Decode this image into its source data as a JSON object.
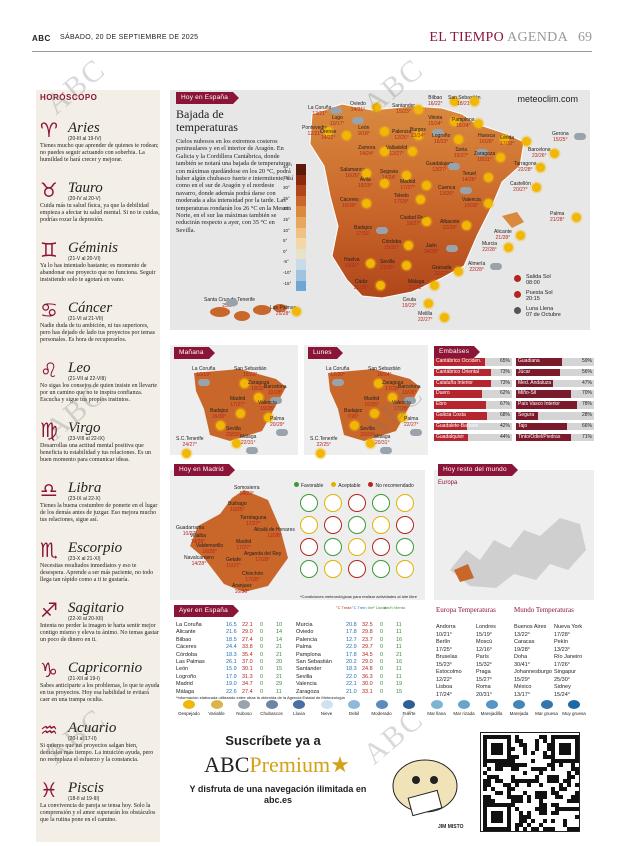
{
  "header": {
    "logo": "ABC",
    "date": "SÁBADO, 20 DE SEPTIEMBRE DE 2025",
    "section": "EL TIEMPO",
    "subsection": "AGENDA",
    "page": "69"
  },
  "watermark": "ABC",
  "horoscope": {
    "title": "HORÓSCOPO",
    "signs": [
      {
        "name": "Aries",
        "symbol": "♈",
        "dates": "(20-III al 19-IV)",
        "text": "Tienes mucho que aprender de quienes te rodean; no puedes seguir actuando con soberbia. La humildad te hará crecer y mejorar."
      },
      {
        "name": "Tauro",
        "symbol": "♉",
        "dates": "(20-IV al 20-V)",
        "text": "Cuida más tu salud física, ya que la debilidad empieza a afectar tu salud mental. Si no te cuidas, podrías rozar la depresión."
      },
      {
        "name": "Géminis",
        "symbol": "♊",
        "dates": "(21-V al 20-VI)",
        "text": "Ya lo has intentado bastante; es momento de abandonar ese proyecto que no funciona. Seguir insistiendo solo te agotará en vano."
      },
      {
        "name": "Cáncer",
        "symbol": "♋",
        "dates": "(21-VI al 21-VII)",
        "text": "Nadie duda de tu ambición, ni tus superiores, pero has dejado de lado tus proyectos por temas personales. Es hora de recuperarlos."
      },
      {
        "name": "Leo",
        "symbol": "♌",
        "dates": "(21-VII al 22-VIII)",
        "text": "No sigas los consejos de quien insiste en llevarte por un camino que no te inspira confianza. Escucha y sigue tus propios instintos."
      },
      {
        "name": "Virgo",
        "symbol": "♍",
        "dates": "(23-VIII al 22-IX)",
        "text": "Desarrollas una actitud mental positiva que beneficia tu estabilidad y tus relaciones. Es un buen momento para comunicar ideas."
      },
      {
        "name": "Libra",
        "symbol": "♎",
        "dates": "(23-IX al 22-X)",
        "text": "Tienes la buena costumbre de ponerte en el lugar de los demás antes de juzgar. Eso mejora mucho tus relaciones, sigue así."
      },
      {
        "name": "Escorpio",
        "symbol": "♏",
        "dates": "(23-X al 21-XI)",
        "text": "Necesitas resultados inmediatos y eso te desespera. Aprende a ser más paciente, no todo llega tan rápido como a ti te gustaría."
      },
      {
        "name": "Sagitario",
        "symbol": "♐",
        "dates": "(22-XI al 20-XII)",
        "text": "Intenta no perder la imagen te harta sentir mejor contigo mismo y eleva tu ánimo. No temas gastar un poco de dinero en ti."
      },
      {
        "name": "Capricornio",
        "symbol": "♑",
        "dates": "(21-XII al 19-I)",
        "text": "Sabes anticiparte a los problemas, lo que te ayuda en tus proyectos. Hoy esa habilidad te evitará caer en una trampa oculta."
      },
      {
        "name": "Acuario",
        "symbol": "♒",
        "dates": "(20-I al 17-II)",
        "text": "Si quieres que tus proyectos salgan bien, dedícales más tiempo. La intuición ayuda, pero no reemplaza el esfuerzo y la constancia."
      },
      {
        "name": "Piscis",
        "symbol": "♓",
        "dates": "(18-II al 19-III)",
        "text": "La convivencia de pareja se tensa hoy. Solo la comprensión y el amor superarán los obstáculos que la rutina pone en el camino."
      }
    ]
  },
  "spain_map": {
    "tag": "Hoy en España",
    "brand": "meteoclim.com",
    "headline": "Bajada de temperaturas",
    "body": "Cielos nubosos en los extremos costeros peninsulares y en el interior de Aragón. En Galicia y la Cordillera Cantábrica, donde también se notará una bajada de temperaturas, con máximas quedándose en los 20 °C, podrá haber algún chubasco fuerte e intermitente, así como en el sur de Aragón y el nordeste navarro, donde además podrá darse con moderada a alta intensidad por la tarde. Las temperaturas rondarán los 26 °C en la Meseta Norte, en el sur las máximas también se reducirán respecto a ayer, con 35 °C en Sevilla.",
    "scale": [
      "40°",
      "35°",
      "30°",
      "25°",
      "20°",
      "15°",
      "10°",
      "5°",
      "0°",
      "-5°",
      "-10°",
      "-15°"
    ],
    "scale_colors": [
      "#5c1a0a",
      "#8a2a0e",
      "#b0461a",
      "#c9662a",
      "#d98a3f",
      "#e6a760",
      "#efc283",
      "#f3d7a6",
      "#e8e2c8",
      "#c8dbe8",
      "#9fc4e0",
      "#6ea6d4"
    ],
    "cities": [
      {
        "n": "La Coruña",
        "t": "13/21°"
      },
      {
        "n": "Oviedo",
        "t": "14/21°"
      },
      {
        "n": "Santander",
        "t": "15/23°"
      },
      {
        "n": "Bilbao",
        "t": "16/22°"
      },
      {
        "n": "San Sebastián",
        "t": "18/21°"
      },
      {
        "n": "Lugo",
        "t": "10/17°"
      },
      {
        "n": "Pontevedra",
        "t": "12/21°"
      },
      {
        "n": "Orense",
        "t": "14/22°"
      },
      {
        "n": "León",
        "t": "9/18°"
      },
      {
        "n": "Palencia",
        "t": "12/26°"
      },
      {
        "n": "Burgos",
        "t": "13/24°"
      },
      {
        "n": "Vitoria",
        "t": "15/24°"
      },
      {
        "n": "Pamplona",
        "t": "16/24°"
      },
      {
        "n": "Huesca",
        "t": "16/28°"
      },
      {
        "n": "Lérida",
        "t": "17/32°"
      },
      {
        "n": "Gerona",
        "t": "15/25°"
      },
      {
        "n": "Barcelona",
        "t": "23/26°"
      },
      {
        "n": "Zamora",
        "t": "14/24°"
      },
      {
        "n": "Valladolid",
        "t": "12/27°"
      },
      {
        "n": "Logroño",
        "t": "16/23°"
      },
      {
        "n": "Soria",
        "t": "15/27°"
      },
      {
        "n": "Zaragoza",
        "t": "18/31°"
      },
      {
        "n": "Tarragona",
        "t": "22/28°"
      },
      {
        "n": "Salamanca",
        "t": "16/26°"
      },
      {
        "n": "Segovia",
        "t": "14/24°"
      },
      {
        "n": "Guadalajara",
        "t": "13/27°"
      },
      {
        "n": "Teruel",
        "t": "14/26°"
      },
      {
        "n": "Castellón",
        "t": "20/27°"
      },
      {
        "n": "Ávila",
        "t": "16/25°"
      },
      {
        "n": "Madrid",
        "t": "17/27°"
      },
      {
        "n": "Cuenca",
        "t": "13/26°"
      },
      {
        "n": "Palma",
        "t": "21/28°"
      },
      {
        "n": "Cáceres",
        "t": "16/30°"
      },
      {
        "n": "Toledo",
        "t": "17/29°"
      },
      {
        "n": "Valencia",
        "t": "19/28°"
      },
      {
        "n": "Badajoz",
        "t": "17/31°"
      },
      {
        "n": "Ciudad Real",
        "t": "18/27°"
      },
      {
        "n": "Albacete",
        "t": "12/29°"
      },
      {
        "n": "Alicante",
        "t": "21/28°"
      },
      {
        "n": "Córdoba",
        "t": "15/31°"
      },
      {
        "n": "Jaén",
        "t": "24/29°"
      },
      {
        "n": "Murcia",
        "t": "22/28°"
      },
      {
        "n": "Huelva",
        "t": "19/31°"
      },
      {
        "n": "Sevilla",
        "t": "21/35°"
      },
      {
        "n": "Granada",
        "t": "22/27°"
      },
      {
        "n": "Almería",
        "t": "22/28°"
      },
      {
        "n": "Málaga",
        "t": "21/28°"
      },
      {
        "n": "Cádiz",
        "t": "22/26°"
      },
      {
        "n": "Ceuta",
        "t": "19/23°"
      },
      {
        "n": "Melilla",
        "t": "22/27°"
      },
      {
        "n": "Santa Cruz de Tenerife",
        "t": "25/27°"
      },
      {
        "n": "Las Palmas",
        "t": "26/28°"
      }
    ],
    "sun": {
      "rise_label": "Salida Sol",
      "rise": "08:00",
      "set_label": "Puesta Sol",
      "set": "20:15",
      "moon_label": "Luna Llena",
      "moon": "07 de Octubre"
    }
  },
  "tomorrow": {
    "tag": "Mañana",
    "cities": [
      {
        "n": "La Coruña",
        "t": "10/19°"
      },
      {
        "n": "San Sebastián",
        "t": "19/23°"
      },
      {
        "n": "Zaragoza",
        "t": "18/32°"
      },
      {
        "n": "Barcelona",
        "t": "22/28°"
      },
      {
        "n": "Madrid",
        "t": "17/27°"
      },
      {
        "n": "Valencia",
        "t": "19/28°"
      },
      {
        "n": "Palma",
        "t": "20/29°"
      },
      {
        "n": "Badajoz",
        "t": "16/30°"
      },
      {
        "n": "Sevilla",
        "t": "23/33°"
      },
      {
        "n": "Málaga",
        "t": "22/31°"
      },
      {
        "n": "S.C.Tenerife",
        "t": "24/27°"
      }
    ]
  },
  "monday": {
    "tag": "Lunes",
    "cities": [
      {
        "n": "La Coruña",
        "t": "12/20°"
      },
      {
        "n": "San Sebastián",
        "t": "16/24°"
      },
      {
        "n": "Zaragoza",
        "t": "17/28°"
      },
      {
        "n": "Barcelona",
        "t": "19/26°"
      },
      {
        "n": "Madrid",
        "t": "16/25°"
      },
      {
        "n": "Valencia",
        "t": "17/28°"
      },
      {
        "n": "Palma",
        "t": "22/27°"
      },
      {
        "n": "Badajoz",
        "t": "7/26°"
      },
      {
        "n": "Sevilla",
        "t": "20/29°"
      },
      {
        "n": "Málaga",
        "t": "20/31°"
      },
      {
        "n": "S.C.Tenerife",
        "t": "22/25°"
      }
    ]
  },
  "reservoirs": {
    "tag": "Embalses",
    "left": [
      {
        "n": "Cantábrico Occiden.",
        "v": "65%"
      },
      {
        "n": "Cantábrico Oriental",
        "v": "73%"
      },
      {
        "n": "Cataluña Interior",
        "v": "73%"
      },
      {
        "n": "Duero",
        "v": "62%"
      },
      {
        "n": "Ebro",
        "v": "67%"
      },
      {
        "n": "Galicia Costa",
        "v": "68%"
      },
      {
        "n": "Guadalete-Barbate",
        "v": "42%"
      },
      {
        "n": "Guadalquivir",
        "v": "44%"
      }
    ],
    "right": [
      {
        "n": "Guadiana",
        "v": "59%"
      },
      {
        "n": "Júcar",
        "v": "56%"
      },
      {
        "n": "Med. Andaluza",
        "v": "47%"
      },
      {
        "n": "Miño-Sil",
        "v": "70%"
      },
      {
        "n": "País Vasco Interior",
        "v": "78%"
      },
      {
        "n": "Segura",
        "v": "28%"
      },
      {
        "n": "Tajo",
        "v": "66%"
      },
      {
        "n": "Tinto/Odiel/Piedras",
        "v": "71%"
      }
    ],
    "colors": {
      "left": "#b5252f",
      "right": "#7a1a2a",
      "band": "#d4d4d4"
    }
  },
  "madrid": {
    "tag": "Hoy en Madrid",
    "legend": [
      "Favorable",
      "Aceptable",
      "No recomendado"
    ],
    "legend_colors": [
      "#3a9a3a",
      "#e2b100",
      "#b3261e"
    ],
    "note": "*Condiciones meteorológicas para realizar actividades al aire libre",
    "towns": [
      {
        "n": "Somosierra",
        "t": "14/23°"
      },
      {
        "n": "Buitrago",
        "t": "10/25°"
      },
      {
        "n": "Torrelaguna",
        "t": "17/27°"
      },
      {
        "n": "Guadarrama",
        "t": "10/27°"
      },
      {
        "n": "Alcalá de Henares",
        "t": "12/28°"
      },
      {
        "n": "Villalba",
        "t": "14/26°"
      },
      {
        "n": "Madrid",
        "t": "17/27°"
      },
      {
        "n": "Navalcarnero",
        "t": "14/28°"
      },
      {
        "n": "Arganda del Rey",
        "t": "17/28°"
      },
      {
        "n": "Getafe",
        "t": "15/27°"
      },
      {
        "n": "Chinchón",
        "t": "17/28°"
      },
      {
        "n": "Aranjuez",
        "t": "16/30°"
      },
      {
        "n": "Valdemorillo",
        "t": "16/28°"
      }
    ]
  },
  "world": {
    "tag": "Hoy resto del mundo",
    "label": "Europa"
  },
  "yesterday": {
    "tag": "Ayer en España",
    "headers": [
      "°C Tmáx",
      "°C Tmín",
      "l/m² Lluvia",
      "km/h Viento"
    ],
    "left": [
      [
        "La Coruña",
        "16.5",
        "22.1",
        "0",
        "10"
      ],
      [
        "Alicante",
        "21.6",
        "29.0",
        "0",
        "14"
      ],
      [
        "Bilbao",
        "18.5",
        "27.4",
        "0",
        "14"
      ],
      [
        "Cáceres",
        "24.4",
        "33.8",
        "0",
        "21"
      ],
      [
        "Córdoba",
        "18.3",
        "35.4",
        "0",
        "21"
      ],
      [
        "Las Palmas",
        "26.1",
        "37.0",
        "0",
        "20"
      ],
      [
        "León",
        "15.9",
        "30.1",
        "0",
        "15"
      ],
      [
        "Logroño",
        "17.9",
        "31.3",
        "0",
        "21"
      ],
      [
        "Madrid",
        "19.0",
        "34.7",
        "0",
        "29"
      ],
      [
        "Málaga",
        "22.6",
        "27.4",
        "0",
        "11"
      ]
    ],
    "right": [
      [
        "Murcia",
        "20.8",
        "32.5",
        "0",
        "11"
      ],
      [
        "Oviedo",
        "17.8",
        "29.8",
        "0",
        "11"
      ],
      [
        "Palencia",
        "12.7",
        "23.7",
        "0",
        "16"
      ],
      [
        "Palma",
        "22.9",
        "29.7",
        "0",
        "11"
      ],
      [
        "Pamplona",
        "17.8",
        "34.5",
        "0",
        "21"
      ],
      [
        "San Sebastián",
        "20.2",
        "29.0",
        "0",
        "16"
      ],
      [
        "Santander",
        "18.3",
        "24.8",
        "0",
        "11"
      ],
      [
        "Sevilla",
        "22.0",
        "36.3",
        "0",
        "11"
      ],
      [
        "Valencia",
        "22.1",
        "30.0",
        "0",
        "19"
      ],
      [
        "Zaragoza",
        "21.0",
        "33.1",
        "0",
        "15"
      ]
    ],
    "footnote": "*Información elaborada utilizando entre otras la obtenida de la Agencia Estatal de Meteorología"
  },
  "europe": {
    "title": "Europa Temperaturas",
    "rows": [
      [
        "Andorra",
        "10/21°",
        "Londres",
        "15/19°"
      ],
      [
        "Berlín",
        "17/25°",
        "Moscú",
        "12/16°"
      ],
      [
        "Bruselas",
        "15/23°",
        "París",
        "15/32°"
      ],
      [
        "Estocolmo",
        "12/22°",
        "Praga",
        "15/27°"
      ],
      [
        "Lisboa",
        "17/24°",
        "Roma",
        "20/31°"
      ]
    ]
  },
  "worldtemps": {
    "title": "Mundo Temperaturas",
    "rows": [
      [
        "Buenos Aires",
        "13/22°",
        "Nueva York",
        "17/28°"
      ],
      [
        "Caracas",
        "19/28°",
        "Pekín",
        "13/23°"
      ],
      [
        "Doha",
        "30/41°",
        "Río Janeiro",
        "17/26°"
      ],
      [
        "Johannesburgo",
        "15/29°",
        "Singapur",
        "25/30°"
      ],
      [
        "México",
        "13/17°",
        "Sidney",
        "15/24°"
      ]
    ]
  },
  "legend": [
    "Despejado",
    "Variable",
    "Nuboso",
    "Chubascos",
    "Lluvia",
    "Nieve",
    "Debil",
    "Moderado",
    "Fuerte",
    "Mar llana",
    "Mar rizada",
    "Marejadilla",
    "Marejada",
    "Mar gruesa",
    "Muy gruesa"
  ],
  "promo": {
    "line1": "Suscríbete ya a",
    "brand_a": "ABC",
    "brand_b": "Premium",
    "line3": "Y disfruta de una navegación ilimitada en abc.es",
    "artist": "JIM MISTO"
  }
}
